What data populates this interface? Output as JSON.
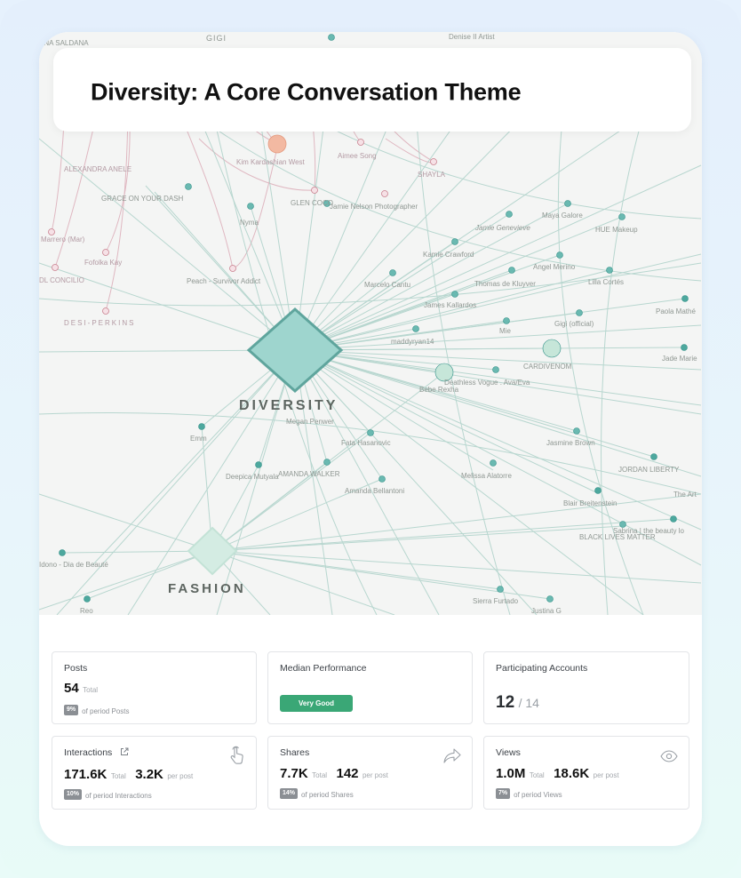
{
  "title": "Diversity: A Core Conversation Theme",
  "network": {
    "themes": [
      "DIVERSITY",
      "FASHION"
    ],
    "nodes": [
      "ANA SALDANA",
      "GIGI",
      "Denise II Artist",
      "ALEXANDRA ANELE",
      "Kim Kardashian West",
      "Aimee Song",
      "SHAYLA",
      "GRACE ON YOUR DASH",
      "GLEN COCO",
      "Jamie Nelson Photographer",
      "Nyma",
      "Maya Galore",
      "Jamie Genevieve",
      "HUE Makeup",
      "Marrero (Mar)",
      "Fofolka Kay",
      "Kamie Crawford",
      "Angel Merino",
      "Lilla Cortés",
      "DL CONCILIO",
      "Peach - Survivor Addict",
      "Marcelo Cantu",
      "Thomas de Kluyver",
      "Paola Mathé",
      "James Kallardos",
      "DESI-PERKINS",
      "maddyryan14",
      "Mie",
      "Gigi (official)",
      "CARDIVENOM",
      "Jade Marie",
      "Deathless Vogue . Ava/Eva",
      "Bebe Rexha",
      "Megan Penwer",
      "Emm",
      "Fata Hasanovic",
      "Jasmine Brown",
      "Deepica Mutyala",
      "AMANDA WALKER",
      "Amanda Bellantoni",
      "Melissa Alatorre",
      "JORDAN LIBERTY",
      "Blair Breitenstein",
      "The Art",
      "Sabrina | the beauty lo",
      "BLACK LIVES MATTER",
      "Idono - Dia de Beauté",
      "Reo",
      "Sierra Furtado",
      "Justina G"
    ]
  },
  "stats": {
    "posts": {
      "label": "Posts",
      "value": "54",
      "unit": "Total",
      "pct": "9%",
      "pct_text": "of period Posts"
    },
    "median": {
      "label": "Median Performance",
      "badge": "Very Good"
    },
    "accounts": {
      "label": "Participating Accounts",
      "value": "12",
      "total": "/ 14"
    },
    "interactions": {
      "label": "Interactions",
      "value": "171.6K",
      "unit": "Total",
      "per_post": "3.2K",
      "per_post_unit": "per post",
      "pct": "10%",
      "pct_text": "of period Interactions",
      "icon": "hand-pointer-icon"
    },
    "shares": {
      "label": "Shares",
      "value": "7.7K",
      "unit": "Total",
      "per_post": "142",
      "per_post_unit": "per post",
      "pct": "14%",
      "pct_text": "of period Shares",
      "icon": "share-arrow-icon"
    },
    "views": {
      "label": "Views",
      "value": "1.0M",
      "unit": "Total",
      "per_post": "18.6K",
      "per_post_unit": "per post",
      "pct": "7%",
      "pct_text": "of period Views",
      "icon": "eye-icon"
    }
  },
  "colors": {
    "badge_good": "#3aa776",
    "diversity_node": "#9ed5ce",
    "fashion_node": "#d4ece3",
    "edge": "#a9cfc6",
    "pink_edge": "#d9a3b0"
  }
}
